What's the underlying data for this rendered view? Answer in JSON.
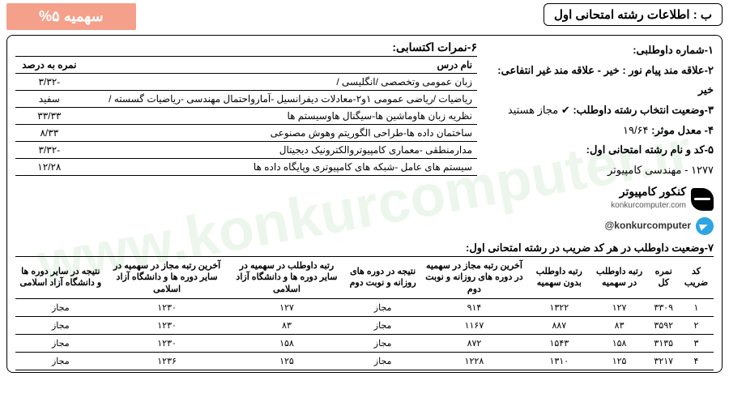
{
  "watermark": "www.konkurcomputer.ir",
  "header": {
    "title": "ب : اطلاعات رشته امتحانی اول",
    "quota": "سهمیه ۵%"
  },
  "info": {
    "l1_label": "۱-شماره داوطلبی:",
    "l2": "۲-علاقه مند پیام نور : خیر - علاقه مند غیر انتفاعی: خیر",
    "l3_label": "۳-وضعیت انتخاب رشته داوطلب:",
    "l3_value": "✔ مجاز هستید",
    "l4_label": "۴- معدل موثر:",
    "l4_value": "۱۹/۶۴",
    "l5_label": "۵-کد و نام رشته امتحانی اول:",
    "l5_value": "۱۲۷۷ - مهندسی کامپیوتر"
  },
  "brand": {
    "name": "کنکور کامپیوتر",
    "site": "konkurcomputer.com",
    "handle": "@konkurcomputer"
  },
  "scores": {
    "title": "۶-نمرات اکتسابی:",
    "columns": [
      "نام درس",
      "نمره به درصد"
    ],
    "rows": [
      [
        "زبان عمومی وتخصصی /انگلیسی /",
        "-۳/۳۲"
      ],
      [
        "ریاضیات /ریاضی عمومی ۱و۲-معادلات دیفرانسیل -آمارواحتمال مهندسی -ریاضیات گسسته /",
        "سفید"
      ],
      [
        "نظریه زبان هاوماشین ها-سیگنال هاوسیستم ها",
        "۳۳/۳۳"
      ],
      [
        "ساختمان داده ها-طراحی الگوریتم وهوش مصنوعی",
        "۸/۳۳"
      ],
      [
        "مدارمنطقی -معماری کامپیوتروالکترونیک دیجیتال",
        "-۳/۳۲"
      ],
      [
        "سیستم های عامل -شبکه های کامپیوتری وپایگاه داده ها",
        "۱۲/۲۸"
      ]
    ]
  },
  "status": {
    "title": "۷-وضعیت داوطلب در هر کد ضریب در رشته امتحانی اول:",
    "columns": [
      "کد ضریب",
      "نمره کل",
      "رتبه داوطلب در سهمیه",
      "رتبه داوطلب بدون سهمیه",
      "آخرین رتبه مجاز در سهمیه در دوره های روزانه و نوبت دوم",
      "نتیجه در دوره های روزانه و نوبت دوم",
      "رتبه داوطلب در سهمیه در سایر دوره ها و دانشگاه آزاد اسلامی",
      "آخرین رتبه مجاز در سهمیه در سایر دوره ها و دانشگاه آزاد اسلامی",
      "نتیجه در سایر دوره ها و دانشگاه آزاد اسلامی"
    ],
    "rows": [
      [
        "۱",
        "۳۳۰۹",
        "۱۲۷",
        "۱۳۲۲",
        "۹۱۴",
        "مجاز",
        "۱۲۷",
        "۱۲۳۰",
        "مجاز"
      ],
      [
        "۲",
        "۳۵۹۲",
        "۸۳",
        "۸۸۷",
        "۱۱۶۷",
        "مجاز",
        "۸۳",
        "۱۲۳۰",
        "مجاز"
      ],
      [
        "۳",
        "۳۱۳۵",
        "۱۵۸",
        "۱۵۴۳",
        "۸۷۲",
        "مجاز",
        "۱۵۸",
        "۱۲۳۰",
        "مجاز"
      ],
      [
        "۴",
        "۳۲۱۷",
        "۱۲۵",
        "۱۳۱۰",
        "۱۲۲۸",
        "مجاز",
        "۱۲۵",
        "۱۲۳۶",
        "مجاز"
      ]
    ]
  }
}
